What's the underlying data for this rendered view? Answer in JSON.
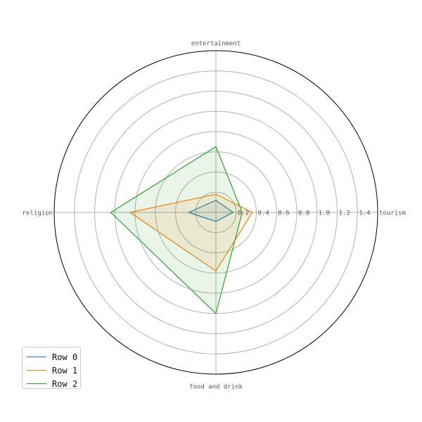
{
  "chart_data": {
    "type": "radar",
    "categories": [
      "tourism",
      "entertainment",
      "religion",
      "food and drink"
    ],
    "radial_ticks": [
      "0.2",
      "0.4",
      "0.6",
      "0.8",
      "1.0",
      "1.2",
      "1.4"
    ],
    "rlim": [
      0,
      1.6
    ],
    "grid": true,
    "legend_position": "lower-left",
    "series": [
      {
        "name": "Row 0",
        "color": "#1f77b4",
        "values": [
          0.17,
          0.12,
          0.27,
          0.09
        ]
      },
      {
        "name": "Row 1",
        "color": "#ff7f0e",
        "values": [
          0.36,
          0.18,
          0.85,
          0.58
        ]
      },
      {
        "name": "Row 2",
        "color": "#2ca02c",
        "values": [
          0.26,
          0.65,
          1.04,
          1.0
        ]
      }
    ]
  }
}
